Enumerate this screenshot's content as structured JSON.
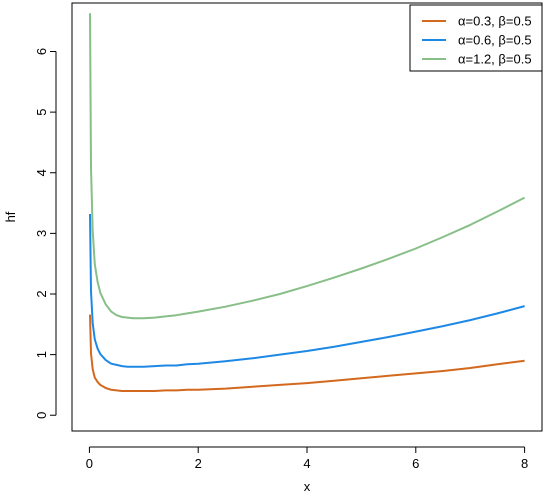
{
  "chart_data": {
    "type": "line",
    "title": "",
    "xlabel": "x",
    "ylabel": "hf",
    "xlim": [
      -0.32,
      8.32
    ],
    "ylim": [
      -0.26,
      6.8
    ],
    "x_ticks": [
      0,
      2,
      4,
      6,
      8
    ],
    "y_ticks": [
      0,
      1,
      2,
      3,
      4,
      5,
      6
    ],
    "grid": false,
    "legend_position": "top-right",
    "series": [
      {
        "name": "α=0.3, β=0.5",
        "color": "#d2691e",
        "x": [
          0.01,
          0.03,
          0.06,
          0.1,
          0.15,
          0.2,
          0.3,
          0.4,
          0.5,
          0.6,
          0.7,
          0.8,
          0.9,
          1.0,
          1.2,
          1.4,
          1.6,
          1.8,
          2.0,
          2.5,
          3.0,
          3.5,
          4.0,
          4.5,
          5.0,
          5.5,
          6.0,
          6.5,
          7.0,
          7.5,
          8.0
        ],
        "values": [
          1.66,
          1.02,
          0.76,
          0.62,
          0.55,
          0.5,
          0.45,
          0.42,
          0.41,
          0.4,
          0.4,
          0.4,
          0.4,
          0.4,
          0.4,
          0.41,
          0.41,
          0.42,
          0.42,
          0.44,
          0.47,
          0.5,
          0.53,
          0.57,
          0.61,
          0.65,
          0.69,
          0.73,
          0.78,
          0.84,
          0.9
        ]
      },
      {
        "name": "α=0.6, β=0.5",
        "color": "#1e88e5",
        "x": [
          0.01,
          0.03,
          0.06,
          0.1,
          0.15,
          0.2,
          0.3,
          0.4,
          0.5,
          0.6,
          0.7,
          0.8,
          0.9,
          1.0,
          1.2,
          1.4,
          1.6,
          1.8,
          2.0,
          2.5,
          3.0,
          3.5,
          4.0,
          4.5,
          5.0,
          5.5,
          6.0,
          6.5,
          7.0,
          7.5,
          8.0
        ],
        "values": [
          3.32,
          2.04,
          1.52,
          1.25,
          1.1,
          1.01,
          0.91,
          0.85,
          0.83,
          0.81,
          0.8,
          0.8,
          0.8,
          0.8,
          0.81,
          0.82,
          0.82,
          0.84,
          0.85,
          0.89,
          0.94,
          1.0,
          1.06,
          1.13,
          1.21,
          1.29,
          1.38,
          1.47,
          1.57,
          1.68,
          1.8
        ]
      },
      {
        "name": "α=1.2, β=0.5",
        "color": "#88bf88",
        "x": [
          0.01,
          0.03,
          0.06,
          0.1,
          0.15,
          0.2,
          0.3,
          0.4,
          0.5,
          0.6,
          0.7,
          0.8,
          0.9,
          1.0,
          1.2,
          1.4,
          1.6,
          1.8,
          2.0,
          2.5,
          3.0,
          3.5,
          4.0,
          4.5,
          5.0,
          5.5,
          6.0,
          6.5,
          7.0,
          7.5,
          8.0
        ],
        "values": [
          6.63,
          4.08,
          3.04,
          2.49,
          2.2,
          2.02,
          1.83,
          1.71,
          1.65,
          1.62,
          1.61,
          1.6,
          1.6,
          1.6,
          1.61,
          1.63,
          1.65,
          1.68,
          1.71,
          1.79,
          1.89,
          2.0,
          2.13,
          2.27,
          2.42,
          2.58,
          2.75,
          2.94,
          3.14,
          3.36,
          3.59
        ]
      }
    ]
  }
}
